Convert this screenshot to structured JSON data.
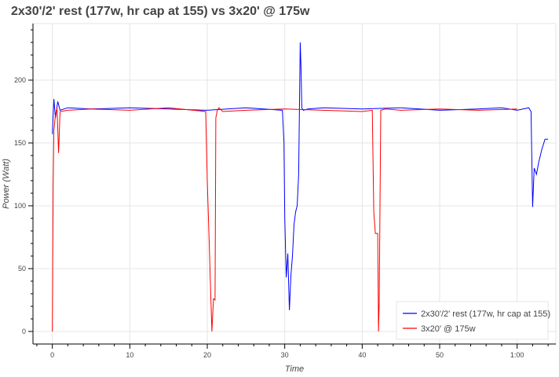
{
  "chart_data": {
    "type": "line",
    "title": "2x30'/2' rest (177w, hr cap at 155) vs 3x20' @ 175w",
    "xlabel": "Time",
    "ylabel": "Power (Watt)",
    "xlim": [
      -2.5,
      65
    ],
    "ylim": [
      -10,
      245
    ],
    "x_ticks": [
      0,
      10,
      20,
      30,
      40,
      50,
      60
    ],
    "x_tick_labels": [
      "0",
      "10",
      "20",
      "30",
      "40",
      "50",
      "1:00"
    ],
    "y_ticks": [
      0,
      50,
      100,
      150,
      200
    ],
    "y_tick_labels": [
      "0",
      "50",
      "100",
      "150",
      "200"
    ],
    "grid": true,
    "legend_position": "bottom-right",
    "series": [
      {
        "name": "2x30'/2' rest (177w, hr cap at 155)",
        "color": "#0000ff",
        "x": [
          0,
          0.2,
          0.4,
          0.7,
          1,
          2,
          5,
          10,
          15,
          20,
          25,
          29.7,
          29.9,
          30.0,
          30.2,
          30.4,
          30.6,
          30.8,
          31.0,
          31.2,
          31.4,
          31.6,
          31.8,
          32.0,
          32.1,
          32.2,
          32.4,
          33,
          35,
          40,
          45,
          50,
          55,
          58,
          60,
          61.5,
          61.8,
          62.0,
          62.2,
          62.5,
          62.8,
          63.2,
          63.6,
          64.0
        ],
        "y": [
          157,
          185,
          170,
          183,
          176,
          178,
          177,
          178,
          177,
          176,
          178,
          176,
          150,
          90,
          43,
          62,
          17,
          45,
          60,
          85,
          95,
          100,
          125,
          230,
          210,
          178,
          176,
          177,
          178,
          177,
          178,
          176,
          177,
          178,
          176,
          178,
          175,
          99,
          130,
          125,
          135,
          145,
          153,
          153
        ]
      },
      {
        "name": "3x20' @ 175w",
        "color": "#ff0000",
        "x": [
          0,
          0.1,
          0.2,
          0.4,
          0.6,
          0.8,
          1,
          2,
          5,
          10,
          15,
          19.8,
          20.0,
          20.2,
          20.4,
          20.6,
          20.8,
          21.0,
          21.1,
          21.3,
          21.5,
          22,
          25,
          30,
          35,
          40,
          41.3,
          41.5,
          41.7,
          42.0,
          42.1,
          42.2,
          42.4,
          43,
          45,
          50,
          55,
          60
        ],
        "y": [
          0,
          115,
          160,
          172,
          178,
          142,
          175,
          176,
          177,
          176,
          178,
          175,
          120,
          80,
          40,
          0,
          26,
          25,
          170,
          176,
          178,
          175,
          176,
          177,
          176,
          175,
          176,
          95,
          78,
          78,
          0,
          23,
          176,
          177,
          176,
          177,
          176,
          177
        ]
      }
    ]
  }
}
